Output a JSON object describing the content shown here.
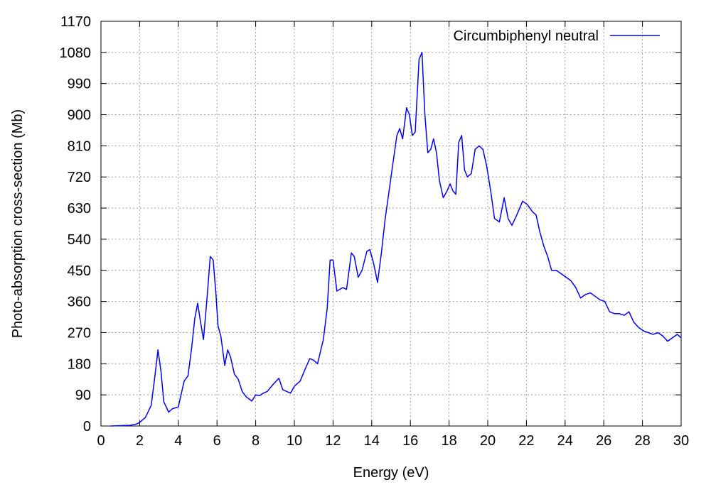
{
  "chart_data": {
    "type": "line",
    "xlabel": "Energy (eV)",
    "ylabel": "Photo-absorption cross-section (Mb)",
    "xlim": [
      0,
      30
    ],
    "ylim": [
      0,
      1170
    ],
    "xticks": [
      0,
      2,
      4,
      6,
      8,
      10,
      12,
      14,
      16,
      18,
      20,
      22,
      24,
      26,
      28,
      30
    ],
    "yticks": [
      0,
      90,
      180,
      270,
      360,
      450,
      540,
      630,
      720,
      810,
      900,
      990,
      1080,
      1170
    ],
    "grid": true,
    "legend_position": "top-right",
    "series": [
      {
        "name": "Circumbiphenyl neutral",
        "color": "#0000ff",
        "x": [
          0.5,
          1.0,
          1.5,
          1.8,
          2.0,
          2.3,
          2.6,
          2.8,
          2.95,
          3.1,
          3.25,
          3.5,
          3.7,
          4.0,
          4.3,
          4.5,
          4.7,
          4.85,
          5.0,
          5.15,
          5.3,
          5.5,
          5.65,
          5.8,
          5.95,
          6.05,
          6.2,
          6.4,
          6.55,
          6.7,
          6.9,
          7.1,
          7.3,
          7.5,
          7.8,
          8.0,
          8.2,
          8.4,
          8.6,
          8.9,
          9.2,
          9.4,
          9.6,
          9.8,
          10.0,
          10.3,
          10.6,
          10.8,
          11.0,
          11.2,
          11.5,
          11.7,
          11.85,
          12.0,
          12.2,
          12.5,
          12.7,
          12.95,
          13.1,
          13.3,
          13.5,
          13.75,
          13.9,
          14.1,
          14.3,
          14.5,
          14.7,
          14.9,
          15.1,
          15.3,
          15.45,
          15.6,
          15.8,
          15.95,
          16.1,
          16.25,
          16.45,
          16.6,
          16.75,
          16.9,
          17.05,
          17.2,
          17.35,
          17.5,
          17.7,
          17.9,
          18.05,
          18.2,
          18.35,
          18.5,
          18.65,
          18.8,
          18.95,
          19.15,
          19.35,
          19.55,
          19.75,
          19.95,
          20.15,
          20.35,
          20.6,
          20.85,
          21.05,
          21.25,
          21.5,
          21.8,
          22.05,
          22.3,
          22.5,
          22.7,
          22.9,
          23.1,
          23.3,
          23.55,
          23.8,
          24.05,
          24.3,
          24.55,
          24.8,
          25.05,
          25.3,
          25.55,
          25.8,
          26.05,
          26.3,
          26.55,
          26.8,
          27.05,
          27.3,
          27.55,
          27.8,
          28.05,
          28.3,
          28.55,
          28.8,
          29.05,
          29.3,
          29.55,
          29.8,
          30.0
        ],
        "y": [
          0,
          1,
          2,
          5,
          10,
          25,
          60,
          150,
          220,
          160,
          70,
          40,
          50,
          55,
          130,
          145,
          230,
          310,
          355,
          300,
          250,
          380,
          490,
          480,
          380,
          290,
          260,
          175,
          220,
          200,
          150,
          135,
          100,
          85,
          72,
          90,
          88,
          95,
          100,
          120,
          138,
          105,
          100,
          95,
          115,
          130,
          170,
          195,
          190,
          180,
          250,
          340,
          480,
          480,
          390,
          400,
          395,
          500,
          490,
          430,
          450,
          505,
          510,
          470,
          415,
          500,
          600,
          680,
          760,
          840,
          860,
          830,
          920,
          900,
          840,
          850,
          1060,
          1080,
          900,
          790,
          800,
          830,
          790,
          710,
          660,
          680,
          700,
          680,
          670,
          820,
          840,
          740,
          720,
          730,
          800,
          810,
          800,
          750,
          680,
          600,
          590,
          660,
          600,
          580,
          610,
          650,
          640,
          620,
          610,
          560,
          520,
          490,
          450,
          450,
          440,
          430,
          420,
          400,
          370,
          380,
          385,
          375,
          365,
          360,
          330,
          325,
          325,
          320,
          330,
          300,
          285,
          275,
          270,
          265,
          270,
          260,
          245,
          255,
          265,
          255
        ]
      }
    ]
  }
}
